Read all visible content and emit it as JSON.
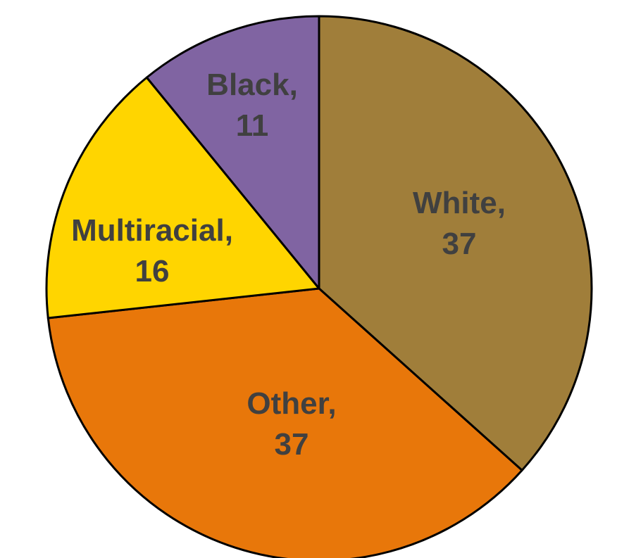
{
  "chart_data": {
    "type": "pie",
    "title": "",
    "slices": [
      {
        "category": "White",
        "value": 37,
        "line1": "White,",
        "line2": "37",
        "color": "#A07E3A"
      },
      {
        "category": "Other",
        "value": 37,
        "line1": "Other,",
        "line2": "37",
        "color": "#E8770A"
      },
      {
        "category": "Multiracial",
        "value": 16,
        "line1": "Multiracial,",
        "line2": "16",
        "color": "#FFD500"
      },
      {
        "category": "Black",
        "value": 11,
        "line1": "Black,",
        "line2": "11",
        "color": "#8064A2"
      }
    ],
    "start_angle_deg": 0,
    "direction": "clockwise",
    "legend": "none",
    "data_labels": "inside"
  }
}
